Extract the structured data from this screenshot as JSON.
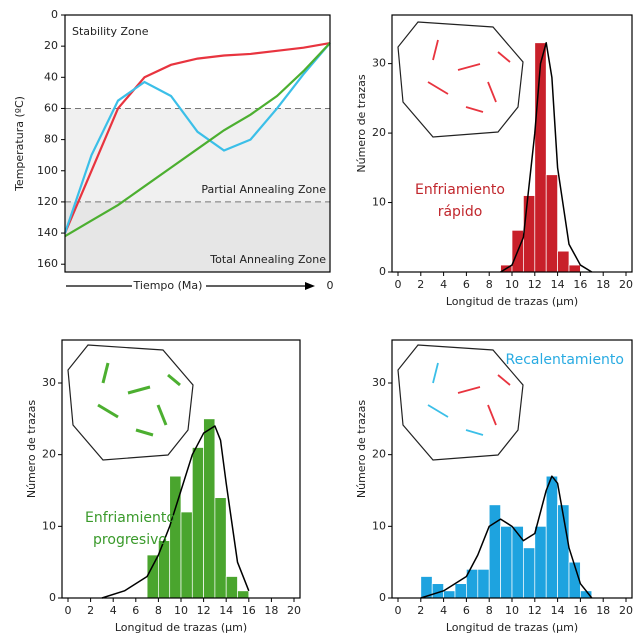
{
  "chart_data": [
    {
      "type": "line",
      "inverted_y": true,
      "categories": [
        null,
        null,
        null,
        null,
        null,
        null,
        null,
        null,
        null,
        null,
        "0"
      ],
      "series": [
        {
          "color": "#e8343f",
          "values": [
            140,
            100,
            60,
            40,
            32,
            28,
            26,
            25,
            23,
            21,
            18
          ]
        },
        {
          "color": "#3bbfe8",
          "values": [
            140,
            90,
            55,
            43,
            52,
            75,
            87,
            80,
            60,
            38,
            18
          ]
        },
        {
          "color": "#4caf30",
          "values": [
            142,
            132,
            122,
            110,
            98,
            86,
            74,
            64,
            52,
            36,
            18
          ]
        }
      ],
      "ylim": [
        0,
        165
      ],
      "yticks": [
        0,
        20,
        40,
        60,
        80,
        100,
        120,
        140,
        160
      ],
      "zone_bounds": [
        60,
        120
      ],
      "annotations": [
        "Stability Zone",
        "Partial Annealing Zone",
        "Total Annealing Zone"
      ],
      "x_label": "Tiempo (Ma)",
      "y_label": "Temperatura (ºC)"
    },
    {
      "type": "histogram",
      "color": "#c8202a",
      "bins": [
        9,
        10,
        11,
        12,
        13,
        14,
        15,
        16
      ],
      "counts": [
        1,
        6,
        11,
        33,
        14,
        3,
        1
      ],
      "curve": {
        "x": [
          9,
          10,
          11,
          12,
          12.5,
          13,
          13.5,
          14,
          15,
          16,
          17
        ],
        "values": [
          0,
          1,
          5,
          20,
          30,
          33,
          28,
          15,
          4,
          1,
          0
        ]
      },
      "xlim": [
        0,
        20
      ],
      "xticks": [
        0,
        2,
        4,
        6,
        8,
        10,
        12,
        14,
        16,
        18,
        20
      ],
      "ylim": [
        0,
        37
      ],
      "yticks": [
        0,
        10,
        20,
        30
      ],
      "x_label": "Longitud de trazas (µm)",
      "y_label": "Número de trazas",
      "annotation": [
        "Enfriamiento",
        "rápido"
      ],
      "annotation_color": "#c1272d"
    },
    {
      "type": "histogram",
      "color": "#4aa52e",
      "bins": [
        7,
        8,
        9,
        10,
        11,
        12,
        13,
        14,
        15,
        16
      ],
      "counts": [
        6,
        8,
        17,
        12,
        21,
        25,
        14,
        3,
        1
      ],
      "curve": {
        "x": [
          3,
          5,
          7,
          8,
          9,
          10,
          11,
          12,
          13,
          13.5,
          14,
          15,
          16
        ],
        "values": [
          0,
          1,
          3,
          6,
          10,
          15,
          20,
          23,
          24,
          22,
          16,
          5,
          1
        ]
      },
      "xlim": [
        0,
        20
      ],
      "xticks": [
        0,
        2,
        4,
        6,
        8,
        10,
        12,
        14,
        16,
        18,
        20
      ],
      "ylim": [
        0,
        36
      ],
      "yticks": [
        0,
        10,
        20,
        30
      ],
      "x_label": "Longitud de trazas (µm)",
      "y_label": "Número de trazas",
      "annotation": [
        "Enfriamiento",
        "progresivo"
      ],
      "annotation_color": "#3a9a2b"
    },
    {
      "type": "histogram",
      "color": "#1ea3df",
      "bins": [
        2,
        3,
        4,
        5,
        6,
        7,
        8,
        9,
        10,
        11,
        12,
        13,
        14,
        15,
        16,
        17
      ],
      "counts": [
        3,
        2,
        1,
        2,
        4,
        4,
        13,
        10,
        10,
        7,
        10,
        17,
        13,
        5,
        1
      ],
      "curve": {
        "x": [
          2,
          4,
          6,
          7,
          8,
          9,
          10,
          11,
          12,
          13,
          13.5,
          14,
          15,
          16,
          17
        ],
        "values": [
          0,
          1,
          3,
          6,
          10,
          11,
          10,
          8,
          9,
          15,
          17,
          16,
          7,
          2,
          0
        ]
      },
      "xlim": [
        0,
        20
      ],
      "xticks": [
        0,
        2,
        4,
        6,
        8,
        10,
        12,
        14,
        16,
        18,
        20
      ],
      "ylim": [
        0,
        36
      ],
      "yticks": [
        0,
        10,
        20,
        30
      ],
      "x_label": "Longitud de trazas (µm)",
      "y_label": "Número de trazas",
      "annotation": [
        "Recalentamiento"
      ],
      "annotation_color": "#29abe2"
    }
  ]
}
